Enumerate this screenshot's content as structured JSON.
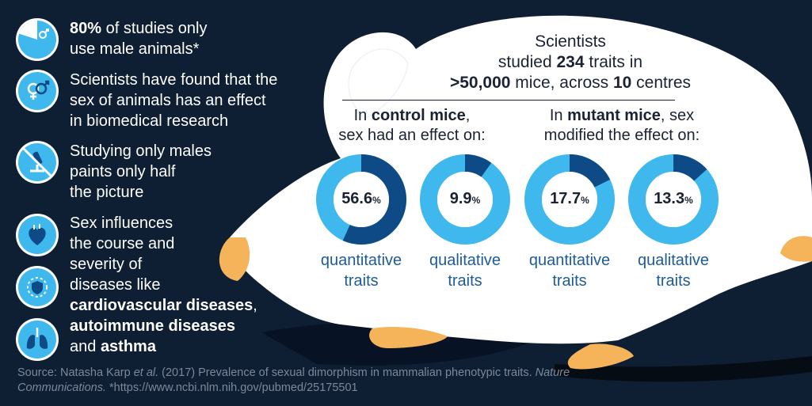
{
  "left_items": [
    {
      "icon": "male-pie-icon",
      "parts": [
        {
          "bold": "80%"
        },
        {
          "text": " of studies only"
        },
        {
          "br": true
        },
        {
          "text": "use male animals*"
        }
      ]
    },
    {
      "icon": "sex-symbols-icon",
      "parts": [
        {
          "text": "Scientists have found that the"
        },
        {
          "br": true
        },
        {
          "text": "sex of animals has an effect"
        },
        {
          "br": true
        },
        {
          "text": "in biomedical research"
        }
      ]
    },
    {
      "icon": "microscope-crossed-icon",
      "parts": [
        {
          "text": "Studying only males"
        },
        {
          "br": true
        },
        {
          "text": "paints only half"
        },
        {
          "br": true
        },
        {
          "text": "the picture"
        }
      ]
    }
  ],
  "disease_text": {
    "line1": "Sex influences",
    "line2": "the course and",
    "line3": "severity of",
    "line4": "diseases like",
    "cardio": "cardiovascular diseases",
    "comma": ",",
    "autoimmune": "autoimmune diseases",
    "and": "and ",
    "asthma": "asthma"
  },
  "disease_icons": [
    "heart-icon",
    "virus-shield-icon",
    "lungs-icon"
  ],
  "headline": {
    "l1": "Scientists",
    "l2a": "studied ",
    "traits_count": "234",
    "l2b": " traits in",
    "mice_count": ">50,000",
    "l3a": " mice, across ",
    "centres_count": "10",
    "l3b": " centres"
  },
  "control": {
    "pre": "In ",
    "bold": "control mice",
    "post": ",",
    "line2": "sex had an effect on:"
  },
  "mutant": {
    "pre": "In ",
    "bold": "mutant mice",
    "post": ", sex",
    "line2": "modified the effect on:"
  },
  "donuts": [
    {
      "value": 56.6,
      "num": "56.6",
      "unit": "%",
      "label1": "quantitative",
      "label2": "traits"
    },
    {
      "value": 9.9,
      "num": "9.9",
      "unit": "%",
      "label1": "qualitative",
      "label2": "traits"
    },
    {
      "value": 17.7,
      "num": "17.7",
      "unit": "%",
      "label1": "quantitative",
      "label2": "traits"
    },
    {
      "value": 13.3,
      "num": "13.3",
      "unit": "%",
      "label1": "qualitative",
      "label2": "traits"
    }
  ],
  "source": {
    "prefix": "Source: Natasha Karp ",
    "etal": "et al.",
    "mid": " (2017) Prevalence of sexual dimorphism in mammalian phenotypic traits. ",
    "journal": "Nature Communications.",
    "suffix": " *https://www.ncbi.nlm.nih.gov/pubmed/25175501"
  },
  "colors": {
    "background": "#0e1e33",
    "light_blue": "#3fb8ee",
    "dark_blue": "#0e4a86",
    "label_blue": "#1d5c96",
    "paw": "#f5b35a"
  }
}
